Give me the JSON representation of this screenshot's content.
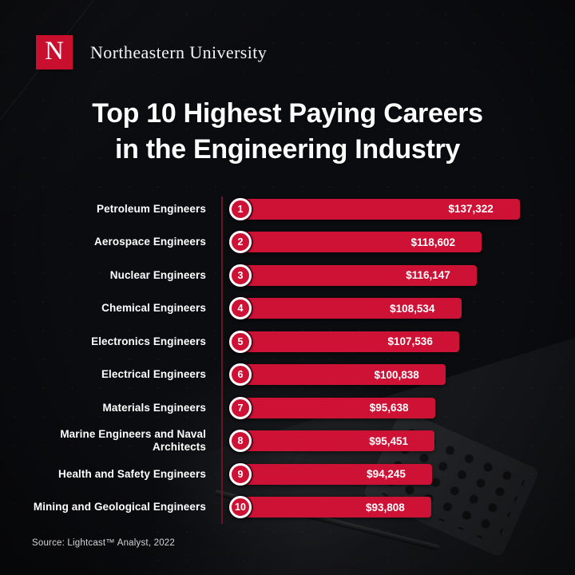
{
  "header": {
    "logo_letter": "N",
    "brand": "Northeastern University"
  },
  "title": {
    "line1": "Top 10 Highest Paying Careers",
    "line2": "in the Engineering Industry"
  },
  "source": "Source: Lightcast™ Analyst, 2022",
  "colors": {
    "bar": "#ce1236",
    "logo": "#c8102e",
    "divider": "#6b1424",
    "background": "#0b0c0f"
  },
  "chart_data": {
    "type": "bar",
    "orientation": "horizontal",
    "title": "Top 10 Highest Paying Careers in the Engineering Industry",
    "categories": [
      "Petroleum Engineers",
      "Aerospace Engineers",
      "Nuclear Engineers",
      "Chemical Engineers",
      "Electronics Engineers",
      "Electrical Engineers",
      "Materials Engineers",
      "Marine Engineers and Naval Architects",
      "Health and Safety Engineers",
      "Mining and Geological Engineers"
    ],
    "ranks": [
      1,
      2,
      3,
      4,
      5,
      6,
      7,
      8,
      9,
      10
    ],
    "values": [
      137322,
      118602,
      116147,
      108534,
      107536,
      100838,
      95638,
      95451,
      94245,
      93808
    ],
    "value_labels": [
      "$137,322",
      "$118,602",
      "$116,147",
      "$108,534",
      "$107,536",
      "$100,838",
      "$95,638",
      "$95,451",
      "$94,245",
      "$93,808"
    ],
    "xlim": [
      0,
      137322
    ],
    "grid": false,
    "legend": false
  }
}
